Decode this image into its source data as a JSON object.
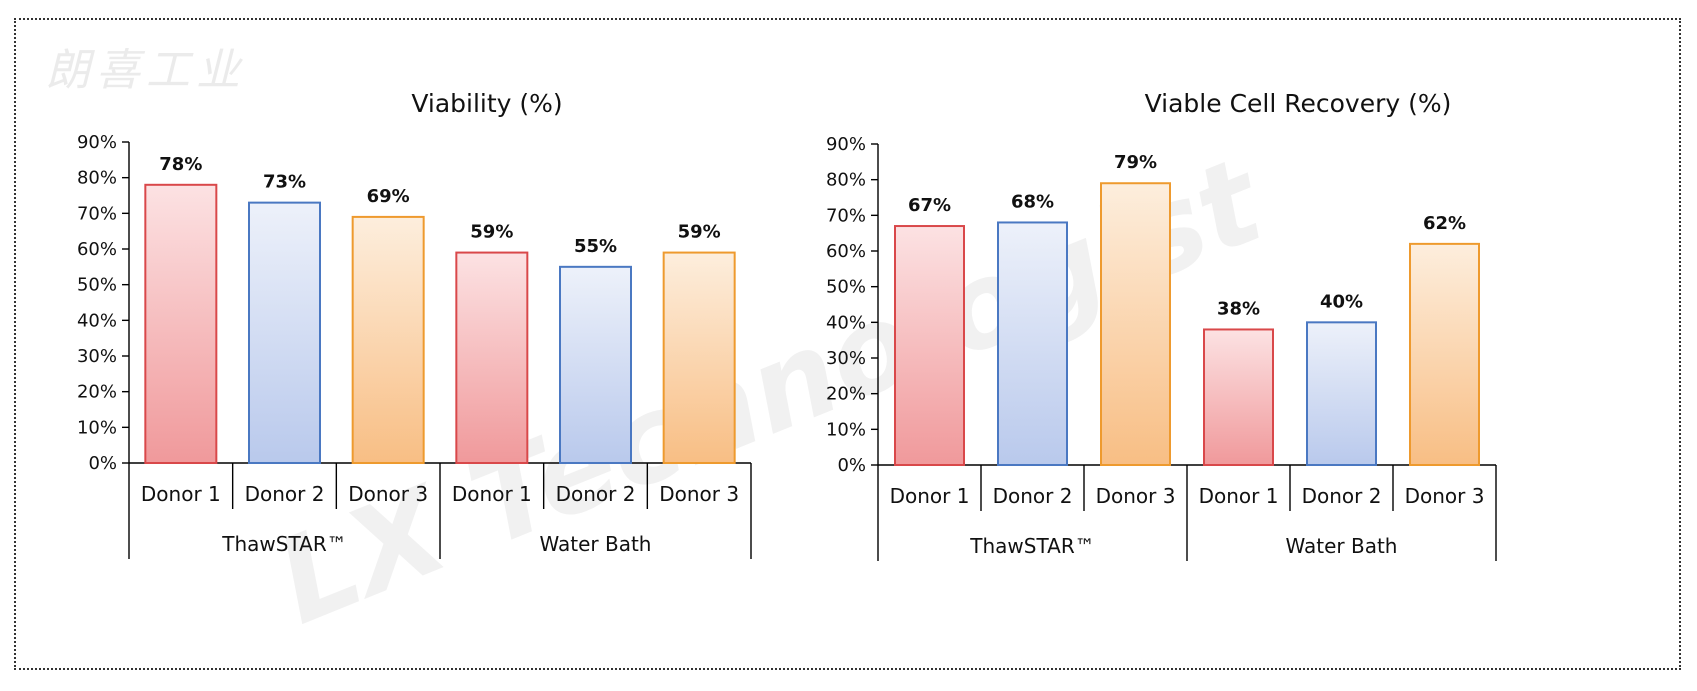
{
  "watermark": {
    "chinese": "朗喜工业",
    "english": "LX Technologist"
  },
  "colors": {
    "Donor 1": {
      "stroke": "#d9484a",
      "top": "#fce2e3",
      "bottom": "#f0999b"
    },
    "Donor 2": {
      "stroke": "#4a78c2",
      "top": "#edf1fa",
      "bottom": "#b9c9ec"
    },
    "Donor 3": {
      "stroke": "#ee9a2e",
      "top": "#fdeedd",
      "bottom": "#f8be84"
    }
  },
  "chart_data": [
    {
      "type": "bar",
      "title": "Viability (%)",
      "categories": [
        "Donor 1",
        "Donor 2",
        "Donor 3",
        "Donor 1",
        "Donor 2",
        "Donor 3"
      ],
      "groups": [
        {
          "label": "ThawSTAR™",
          "span": 3
        },
        {
          "label": "Water Bath",
          "span": 3
        }
      ],
      "values": [
        78,
        73,
        69,
        59,
        55,
        59
      ],
      "data_labels": [
        "78%",
        "73%",
        "69%",
        "59%",
        "55%",
        "59%"
      ],
      "ylim": [
        0,
        90
      ],
      "yticks": [
        "0%",
        "10%",
        "20%",
        "30%",
        "40%",
        "50%",
        "60%",
        "70%",
        "80%",
        "90%"
      ],
      "grid": false,
      "legend": "none"
    },
    {
      "type": "bar",
      "title": "Viable Cell Recovery (%)",
      "categories": [
        "Donor 1",
        "Donor 2",
        "Donor 3",
        "Donor 1",
        "Donor 2",
        "Donor 3"
      ],
      "groups": [
        {
          "label": "ThawSTAR™",
          "span": 3
        },
        {
          "label": "Water Bath",
          "span": 3
        }
      ],
      "values": [
        67,
        68,
        79,
        38,
        40,
        62
      ],
      "data_labels": [
        "67%",
        "68%",
        "79%",
        "38%",
        "40%",
        "62%"
      ],
      "ylim": [
        0,
        90
      ],
      "yticks": [
        "0%",
        "10%",
        "20%",
        "30%",
        "40%",
        "50%",
        "60%",
        "70%",
        "80%",
        "90%"
      ],
      "grid": false,
      "legend": "none"
    }
  ]
}
